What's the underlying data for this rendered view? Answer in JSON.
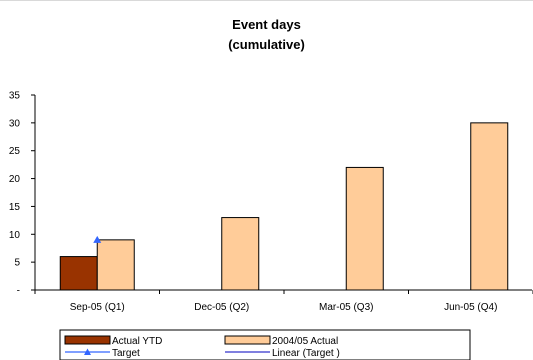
{
  "chart_data": {
    "type": "bar",
    "title": "Event days",
    "subtitle": "(cumulative)",
    "categories": [
      "Sep-05 (Q1)",
      "Dec-05 (Q2)",
      "Mar-05 (Q3)",
      "Jun-05 (Q4)"
    ],
    "series": [
      {
        "name": "Actual YTD",
        "kind": "bar",
        "color": "#993300",
        "values": [
          6,
          null,
          null,
          null
        ]
      },
      {
        "name": "2004/05 Actual",
        "kind": "bar",
        "color": "#ffcc99",
        "values": [
          9,
          13,
          22,
          30
        ]
      },
      {
        "name": "Target",
        "kind": "line-marker",
        "color": "#3366ff",
        "values": [
          9,
          null,
          null,
          null
        ]
      },
      {
        "name": "Linear (Target )",
        "kind": "trendline",
        "color": "#3333cc",
        "values": [
          null,
          null,
          null,
          null
        ]
      }
    ],
    "yticks": [
      "-",
      "5",
      "10",
      "15",
      "20",
      "25",
      "30",
      "35"
    ],
    "ylim": [
      0,
      35
    ],
    "grid": false,
    "legend_position": "bottom"
  }
}
